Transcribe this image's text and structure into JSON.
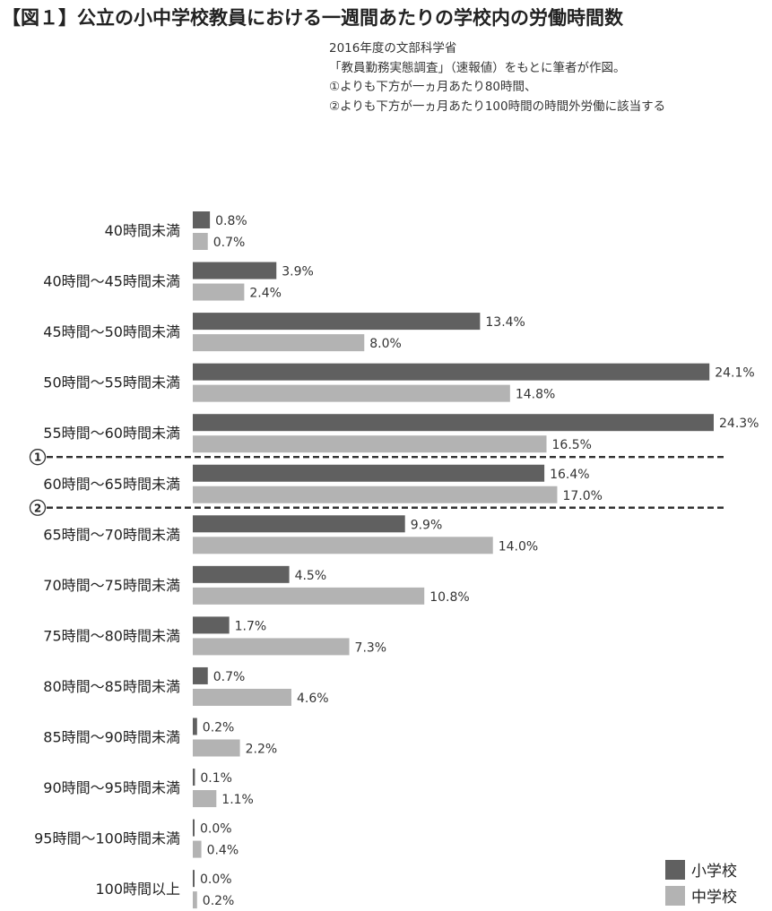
{
  "title": "【図１】公立の小中学校教員における一週間あたりの学校内の労働時間数",
  "notes": [
    "2016年度の文部科学省",
    "「教員勤務実態調査」（速報値）をもとに筆者が作図。",
    "①よりも下方が一ヵ月あたり80時間、",
    "②よりも下方が一ヵ月あたり100時間の時間外労働に該当する"
  ],
  "chart_data": {
    "type": "bar",
    "orientation": "horizontal",
    "categories": [
      "40時間未満",
      "40時間〜45時間未満",
      "45時間〜50時間未満",
      "50時間〜55時間未満",
      "55時間〜60時間未満",
      "60時間〜65時間未満",
      "65時間〜70時間未満",
      "70時間〜75時間未満",
      "75時間〜80時間未満",
      "80時間〜85時間未満",
      "85時間〜90時間未満",
      "90時間〜95時間未満",
      "95時間〜100時間未満",
      "100時間以上"
    ],
    "series": [
      {
        "name": "小学校",
        "color": "#606060",
        "values": [
          0.8,
          3.9,
          13.4,
          24.1,
          24.3,
          16.4,
          9.9,
          4.5,
          1.7,
          0.7,
          0.2,
          0.1,
          0.0,
          0.0
        ],
        "labels": [
          "0.8%",
          "3.9%",
          "13.4%",
          "24.1%",
          "24.3%",
          "16.4%",
          "9.9%",
          "4.5%",
          "1.7%",
          "0.7%",
          "0.2%",
          "0.1%",
          "0.0%",
          "0.0%"
        ]
      },
      {
        "name": "中学校",
        "color": "#b3b3b3",
        "values": [
          0.7,
          2.4,
          8.0,
          14.8,
          16.5,
          17.0,
          14.0,
          10.8,
          7.3,
          4.6,
          2.2,
          1.1,
          0.4,
          0.2
        ],
        "labels": [
          "0.7%",
          "2.4%",
          "8.0%",
          "14.8%",
          "16.5%",
          "17.0%",
          "14.0%",
          "10.8%",
          "7.3%",
          "4.6%",
          "2.2%",
          "1.1%",
          "0.4%",
          "0.2%"
        ]
      }
    ],
    "xlim": [
      0,
      24.3
    ],
    "grid": false,
    "legend": "bottom-right",
    "reference_lines": [
      {
        "label": "①",
        "after_category": "55時間〜60時間未満"
      },
      {
        "label": "②",
        "after_category": "60時間〜65時間未満"
      }
    ]
  }
}
